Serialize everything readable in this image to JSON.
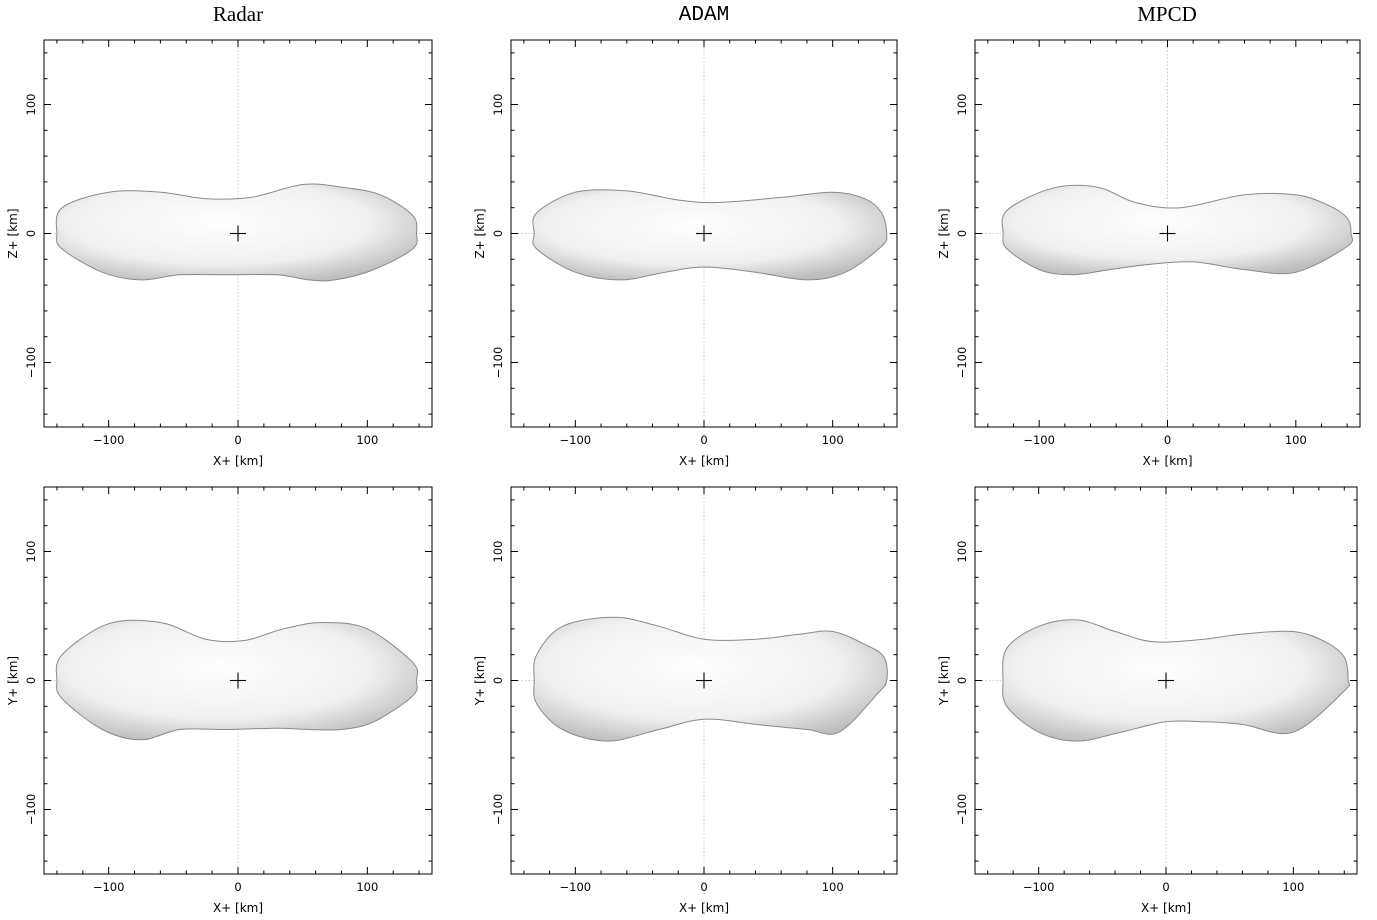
{
  "columns": [
    {
      "title": "Radar",
      "font": "serif"
    },
    {
      "title": "ADAM",
      "font": "mono"
    },
    {
      "title": "MPCD",
      "font": "serif"
    }
  ],
  "chart_data": [
    {
      "type": "other",
      "model": "Radar",
      "view": "x-z",
      "xlabel": "X+ [km]",
      "ylabel": "Z+ [km]",
      "xlim": [
        -150,
        150
      ],
      "ylim": [
        -150,
        150
      ],
      "xticks": [
        -100,
        0,
        100
      ],
      "yticks": [
        -100,
        0,
        100
      ],
      "outline": {
        "upper": [
          [
            -136,
            20
          ],
          [
            -100,
            32
          ],
          [
            -60,
            32
          ],
          [
            -25,
            27
          ],
          [
            10,
            28
          ],
          [
            50,
            38
          ],
          [
            80,
            36
          ],
          [
            110,
            30
          ],
          [
            135,
            14
          ]
        ],
        "lower": [
          [
            -136,
            -12
          ],
          [
            -105,
            -30
          ],
          [
            -75,
            -36
          ],
          [
            -45,
            -32
          ],
          [
            -10,
            -32
          ],
          [
            30,
            -32
          ],
          [
            55,
            -36
          ],
          [
            75,
            -36
          ],
          [
            105,
            -28
          ],
          [
            135,
            -12
          ]
        ],
        "left_x": -140,
        "right_x": 138
      }
    },
    {
      "type": "other",
      "model": "ADAM",
      "view": "x-z",
      "xlabel": "X+ [km]",
      "ylabel": "Z+ [km]",
      "xlim": [
        -150,
        150
      ],
      "ylim": [
        -150,
        150
      ],
      "xticks": [
        -100,
        0,
        100
      ],
      "yticks": [
        -100,
        0,
        100
      ],
      "outline": {
        "upper": [
          [
            -130,
            16
          ],
          [
            -100,
            32
          ],
          [
            -60,
            33
          ],
          [
            -20,
            26
          ],
          [
            10,
            24
          ],
          [
            60,
            28
          ],
          [
            100,
            32
          ],
          [
            125,
            27
          ],
          [
            138,
            16
          ]
        ],
        "lower": [
          [
            -130,
            -12
          ],
          [
            -100,
            -30
          ],
          [
            -65,
            -36
          ],
          [
            -30,
            -30
          ],
          [
            0,
            -26
          ],
          [
            40,
            -30
          ],
          [
            80,
            -36
          ],
          [
            110,
            -30
          ],
          [
            138,
            -10
          ]
        ],
        "left_x": -132,
        "right_x": 142
      }
    },
    {
      "type": "other",
      "model": "MPCD",
      "view": "x-z",
      "xlabel": "X+ [km]",
      "ylabel": "Z+ [km]",
      "xlim": [
        -150,
        150
      ],
      "ylim": [
        -150,
        150
      ],
      "xticks": [
        -100,
        0,
        100
      ],
      "yticks": [
        -100,
        0,
        100
      ],
      "outline": {
        "upper": [
          [
            -125,
            18
          ],
          [
            -90,
            35
          ],
          [
            -55,
            36
          ],
          [
            -25,
            24
          ],
          [
            10,
            20
          ],
          [
            60,
            30
          ],
          [
            100,
            30
          ],
          [
            125,
            22
          ],
          [
            140,
            12
          ]
        ],
        "lower": [
          [
            -125,
            -12
          ],
          [
            -100,
            -28
          ],
          [
            -75,
            -32
          ],
          [
            -45,
            -28
          ],
          [
            -15,
            -24
          ],
          [
            20,
            -22
          ],
          [
            60,
            -28
          ],
          [
            100,
            -30
          ],
          [
            140,
            -10
          ]
        ],
        "left_x": -128,
        "right_x": 143
      }
    },
    {
      "type": "other",
      "model": "Radar",
      "view": "x-y",
      "xlabel": "X+ [km]",
      "ylabel": "Y+ [km]",
      "xlim": [
        -150,
        150
      ],
      "ylim": [
        -150,
        150
      ],
      "xticks": [
        -100,
        0,
        100
      ],
      "yticks": [
        -100,
        0,
        100
      ],
      "outline": {
        "upper": [
          [
            -136,
            20
          ],
          [
            -100,
            44
          ],
          [
            -60,
            45
          ],
          [
            -25,
            32
          ],
          [
            5,
            31
          ],
          [
            35,
            40
          ],
          [
            65,
            45
          ],
          [
            100,
            40
          ],
          [
            135,
            14
          ]
        ],
        "lower": [
          [
            -136,
            -14
          ],
          [
            -105,
            -38
          ],
          [
            -75,
            -46
          ],
          [
            -45,
            -38
          ],
          [
            -10,
            -38
          ],
          [
            30,
            -37
          ],
          [
            55,
            -38
          ],
          [
            80,
            -38
          ],
          [
            105,
            -32
          ],
          [
            135,
            -12
          ]
        ],
        "left_x": -140,
        "right_x": 138
      }
    },
    {
      "type": "other",
      "model": "ADAM",
      "view": "x-y",
      "xlabel": "X+ [km]",
      "ylabel": "Y+ [km]",
      "xlim": [
        -150,
        150
      ],
      "ylim": [
        -150,
        150
      ],
      "xticks": [
        -100,
        0,
        100
      ],
      "yticks": [
        -100,
        0,
        100
      ],
      "outline": {
        "upper": [
          [
            -130,
            20
          ],
          [
            -110,
            42
          ],
          [
            -70,
            49
          ],
          [
            -35,
            42
          ],
          [
            0,
            32
          ],
          [
            40,
            32
          ],
          [
            75,
            36
          ],
          [
            100,
            38
          ],
          [
            125,
            28
          ],
          [
            140,
            18
          ]
        ],
        "lower": [
          [
            -130,
            -18
          ],
          [
            -110,
            -38
          ],
          [
            -75,
            -47
          ],
          [
            -35,
            -38
          ],
          [
            0,
            -30
          ],
          [
            40,
            -34
          ],
          [
            80,
            -38
          ],
          [
            105,
            -40
          ],
          [
            135,
            -10
          ]
        ],
        "left_x": -132,
        "right_x": 142
      }
    },
    {
      "type": "other",
      "model": "MPCD",
      "view": "x-y",
      "xlabel": "X+ [km]",
      "ylabel": "Y+ [km]",
      "xlim": [
        -150,
        150
      ],
      "ylim": [
        -150,
        150
      ],
      "xticks": [
        -100,
        0,
        100
      ],
      "yticks": [
        -100,
        0,
        100
      ],
      "outline": {
        "upper": [
          [
            -125,
            25
          ],
          [
            -100,
            42
          ],
          [
            -70,
            47
          ],
          [
            -40,
            38
          ],
          [
            -10,
            30
          ],
          [
            30,
            32
          ],
          [
            60,
            36
          ],
          [
            100,
            38
          ],
          [
            125,
            30
          ],
          [
            140,
            18
          ]
        ],
        "lower": [
          [
            -125,
            -20
          ],
          [
            -100,
            -40
          ],
          [
            -70,
            -47
          ],
          [
            -35,
            -40
          ],
          [
            0,
            -32
          ],
          [
            30,
            -32
          ],
          [
            60,
            -34
          ],
          [
            100,
            -40
          ],
          [
            140,
            -8
          ]
        ],
        "left_x": -128,
        "right_x": 143
      }
    }
  ]
}
